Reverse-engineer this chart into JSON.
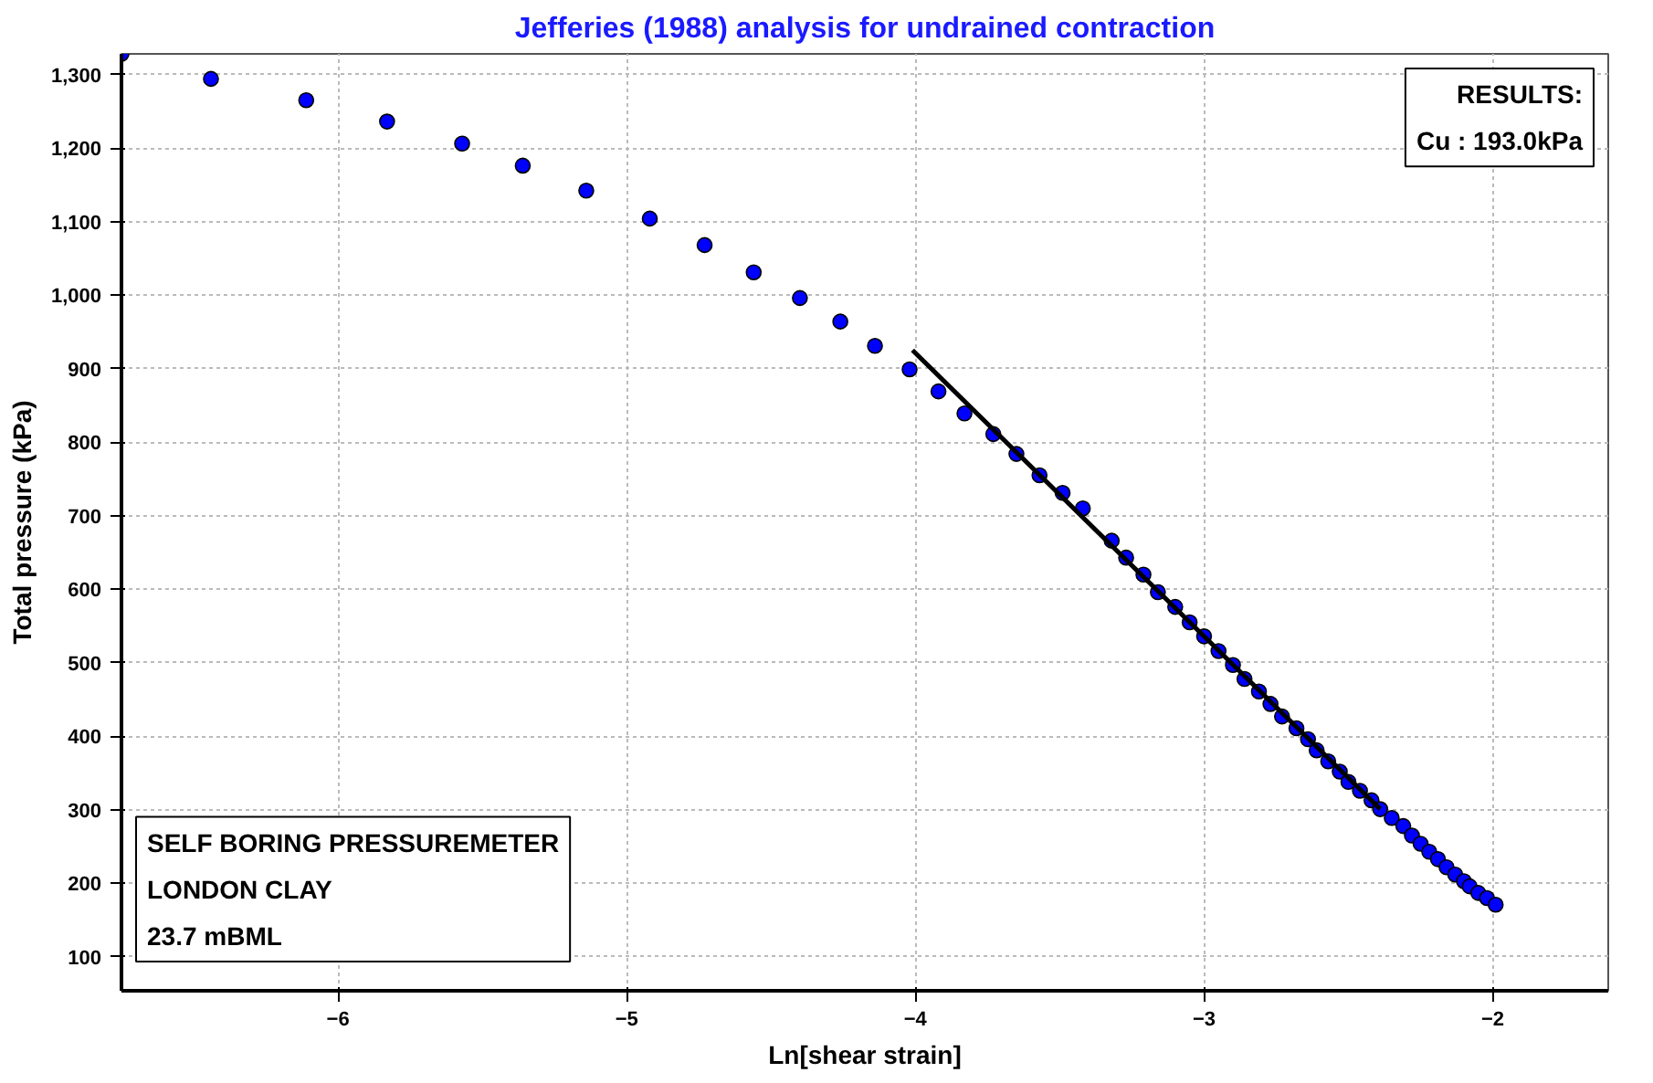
{
  "chart_data": {
    "type": "scatter",
    "title": "Jefferies (1988) analysis for undrained contraction",
    "xlabel": "Ln[shear strain]",
    "ylabel": "Total pressure (kPa)",
    "xlim": [
      -6.75,
      -1.6
    ],
    "ylim": [
      54,
      1328
    ],
    "xticks": [
      -6,
      -5,
      -4,
      -3,
      -2
    ],
    "yticks": [
      100,
      200,
      300,
      400,
      500,
      600,
      700,
      800,
      900,
      {
        "value": 1000,
        "label": "1,000"
      },
      {
        "value": 1100,
        "label": "1,100"
      },
      {
        "value": 1200,
        "label": "1,200"
      },
      {
        "value": 1300,
        "label": "1,300"
      }
    ],
    "grid": true,
    "annotations": [
      "RESULTS:\nCu : 193.0kPa",
      "SELF BORING PRESSUREMETER\nLONDON CLAY\n23.7 mBML"
    ],
    "series": [
      {
        "marker": "circle",
        "color": "#0000ff",
        "x": [
          -6.75,
          -6.44,
          -6.11,
          -5.83,
          -5.57,
          -5.36,
          -5.14,
          -4.92,
          -4.73,
          -4.56,
          -4.4,
          -4.26,
          -4.14,
          -4.02,
          -3.92,
          -3.83,
          -3.73,
          -3.65,
          -3.57,
          -3.49,
          -3.42,
          -3.32,
          -3.27,
          -3.21,
          -3.16,
          -3.1,
          -3.05,
          -3.0,
          -2.95,
          -2.9,
          -2.86,
          -2.81,
          -2.77,
          -2.73,
          -2.68,
          -2.64,
          -2.61,
          -2.57,
          -2.53,
          -2.5,
          -2.46,
          -2.42,
          -2.39,
          -2.35,
          -2.31,
          -2.28,
          -2.25,
          -2.22,
          -2.19,
          -2.16,
          -2.13,
          -2.1,
          -2.08,
          -2.05,
          -2.02,
          -1.99
        ],
        "values": [
          1328,
          1294,
          1265,
          1236,
          1206,
          1176,
          1142,
          1104,
          1068,
          1031,
          996,
          964,
          931,
          899,
          869,
          839,
          811,
          784,
          755,
          731,
          710,
          666,
          643,
          620,
          596,
          576,
          555,
          536,
          516,
          497,
          478,
          461,
          444,
          427,
          411,
          396,
          381,
          366,
          352,
          338,
          326,
          313,
          301,
          289,
          278,
          265,
          254,
          243,
          233,
          222,
          212,
          203,
          196,
          187,
          180,
          171
        ]
      },
      {
        "type": "line",
        "color": "#000000",
        "line_style": "solid",
        "x": [
          -4.01,
          -2.39
        ],
        "values": [
          925,
          301
        ]
      }
    ]
  }
}
